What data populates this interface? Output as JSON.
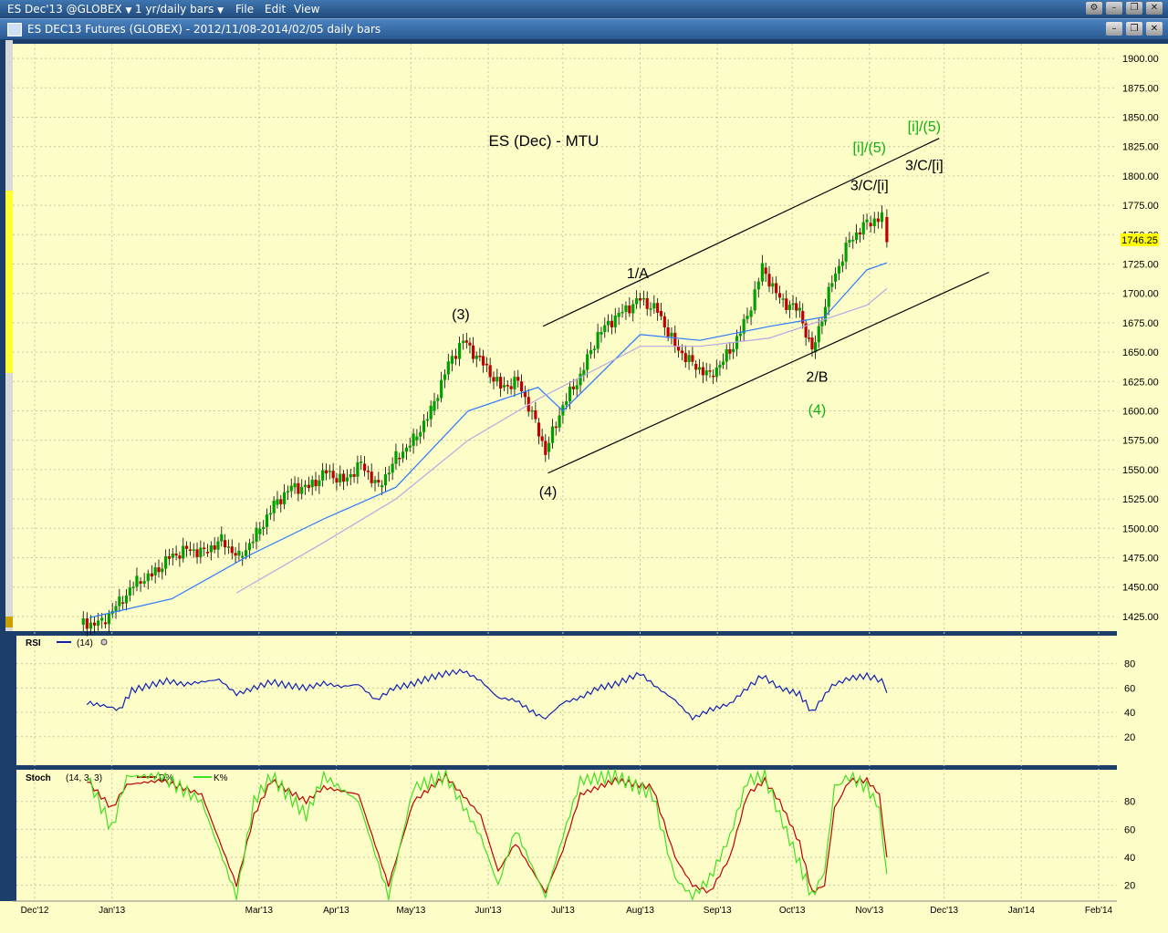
{
  "menu": {
    "symbol_label": "ES Dec'13 @GLOBEX",
    "interval_label": "1 yr/daily bars",
    "file_label": "File",
    "edit_label": "Edit",
    "view_label": "View"
  },
  "window": {
    "title": "ES DEC13 Futures (GLOBEX) - 2012/11/08-2014/02/05 daily bars"
  },
  "colors": {
    "panel_bg": "#fdfdc8",
    "grid": "#c8c8a0",
    "up_candle": "#00a000",
    "down_candle": "#c00000",
    "ma_fast": "#2878ff",
    "ma_slow": "#b7a7e6",
    "rsi_line": "#1020b0",
    "stoch_d": "#c00000",
    "stoch_k": "#40e020",
    "wave_green": "#10b010",
    "wave_black": "#000000",
    "last_price_bg": "#ffff00"
  },
  "chart_data": [
    {
      "type": "candlestick",
      "title": "ES (Dec) - MTU",
      "ylim": [
        1412.5,
        1912.5
      ],
      "yticks": [
        "1900.00",
        "1875.00",
        "1850.00",
        "1825.00",
        "1800.00",
        "1775.00",
        "1750.00",
        "1725.00",
        "1700.00",
        "1675.00",
        "1650.00",
        "1625.00",
        "1600.00",
        "1575.00",
        "1550.00",
        "1525.00",
        "1500.00",
        "1475.00",
        "1450.00",
        "1425.00"
      ],
      "last_price": "1746.25",
      "x_months": [
        "Dec '12",
        "Jan '13",
        "Mar '13",
        "Apr '13",
        "May '13",
        "Jun '13",
        "Jul '13",
        "Aug '13",
        "Sep '13",
        "Oct '13",
        "Nov '13",
        "Dec '13",
        "Jan '14",
        "Feb '14"
      ],
      "x_month_positions": [
        "2012-12-01",
        "2013-01-01",
        "2013-03-01",
        "2013-04-01",
        "2013-05-01",
        "2013-06-01",
        "2013-07-01",
        "2013-08-01",
        "2013-09-01",
        "2013-10-01",
        "2013-11-01",
        "2013-12-01",
        "2014-01-01",
        "2014-02-01"
      ],
      "x_range": [
        "2012-11-08",
        "2014-02-05"
      ],
      "closes": [
        [
          "2012-12-19",
          1418
        ],
        [
          "2012-12-28",
          1420
        ],
        [
          "2013-01-04",
          1437
        ],
        [
          "2013-01-11",
          1455
        ],
        [
          "2013-01-17",
          1460
        ],
        [
          "2013-01-24",
          1475
        ],
        [
          "2013-01-31",
          1482
        ],
        [
          "2013-02-07",
          1480
        ],
        [
          "2013-02-14",
          1490
        ],
        [
          "2013-02-21",
          1475
        ],
        [
          "2013-02-28",
          1495
        ],
        [
          "2013-03-07",
          1520
        ],
        [
          "2013-03-14",
          1535
        ],
        [
          "2013-03-21",
          1535
        ],
        [
          "2013-03-28",
          1548
        ],
        [
          "2013-04-04",
          1540
        ],
        [
          "2013-04-11",
          1555
        ],
        [
          "2013-04-18",
          1535
        ],
        [
          "2013-04-25",
          1560
        ],
        [
          "2013-05-02",
          1575
        ],
        [
          "2013-05-09",
          1600
        ],
        [
          "2013-05-16",
          1640
        ],
        [
          "2013-05-22",
          1660
        ],
        [
          "2013-05-30",
          1640
        ],
        [
          "2013-06-06",
          1620
        ],
        [
          "2013-06-13",
          1625
        ],
        [
          "2013-06-20",
          1590
        ],
        [
          "2013-06-24",
          1565
        ],
        [
          "2013-07-01",
          1605
        ],
        [
          "2013-07-08",
          1630
        ],
        [
          "2013-07-15",
          1665
        ],
        [
          "2013-07-22",
          1680
        ],
        [
          "2013-08-01",
          1695
        ],
        [
          "2013-08-08",
          1685
        ],
        [
          "2013-08-15",
          1655
        ],
        [
          "2013-08-22",
          1640
        ],
        [
          "2013-08-29",
          1630
        ],
        [
          "2013-09-06",
          1650
        ],
        [
          "2013-09-13",
          1680
        ],
        [
          "2013-09-19",
          1722
        ],
        [
          "2013-09-26",
          1695
        ],
        [
          "2013-10-04",
          1685
        ],
        [
          "2013-10-09",
          1650
        ],
        [
          "2013-10-17",
          1710
        ],
        [
          "2013-10-24",
          1745
        ],
        [
          "2013-10-31",
          1760
        ],
        [
          "2013-11-06",
          1765
        ],
        [
          "2013-11-08",
          1746.25
        ]
      ],
      "ma_fast": [
        [
          "2012-12-23",
          1424
        ],
        [
          "2013-01-25",
          1440
        ],
        [
          "2013-02-26",
          1478
        ],
        [
          "2013-03-27",
          1508
        ],
        [
          "2013-04-25",
          1535
        ],
        [
          "2013-05-24",
          1600
        ],
        [
          "2013-06-21",
          1620
        ],
        [
          "2013-07-01",
          1600
        ],
        [
          "2013-08-01",
          1665
        ],
        [
          "2013-08-25",
          1660
        ],
        [
          "2013-09-22",
          1672
        ],
        [
          "2013-10-14",
          1680
        ],
        [
          "2013-10-31",
          1720
        ],
        [
          "2013-11-08",
          1726
        ]
      ],
      "ma_slow": [
        [
          "2013-02-20",
          1445
        ],
        [
          "2013-03-27",
          1488
        ],
        [
          "2013-04-25",
          1525
        ],
        [
          "2013-05-24",
          1575
        ],
        [
          "2013-06-21",
          1610
        ],
        [
          "2013-08-01",
          1655
        ],
        [
          "2013-08-25",
          1655
        ],
        [
          "2013-09-22",
          1662
        ],
        [
          "2013-10-31",
          1690
        ],
        [
          "2013-11-08",
          1704
        ]
      ],
      "channel_lines": [
        {
          "from": [
            "2013-06-23",
            1672
          ],
          "to": [
            "2013-11-29",
            1832
          ]
        },
        {
          "from": [
            "2013-06-25",
            1547
          ],
          "to": [
            "2013-12-19",
            1718
          ]
        }
      ],
      "wave_labels": [
        {
          "text": "(3)",
          "date": "2013-05-21",
          "price": 1678,
          "color": "black"
        },
        {
          "text": "(4)",
          "date": "2013-06-25",
          "price": 1527,
          "color": "black"
        },
        {
          "text": "1/A",
          "date": "2013-07-31",
          "price": 1713,
          "color": "black"
        },
        {
          "text": "2/B",
          "date": "2013-10-11",
          "price": 1625,
          "color": "black"
        },
        {
          "text": "(4)",
          "date": "2013-10-11",
          "price": 1597,
          "color": "green"
        },
        {
          "text": "[i]/(5)",
          "date": "2013-11-01",
          "price": 1820,
          "color": "green"
        },
        {
          "text": "3/C/[i]",
          "date": "2013-11-01",
          "price": 1788,
          "color": "black"
        },
        {
          "text": "[i]/(5)",
          "date": "2013-11-23",
          "price": 1838,
          "color": "green"
        },
        {
          "text": "3/C/[i]",
          "date": "2013-11-23",
          "price": 1805,
          "color": "black"
        }
      ]
    },
    {
      "type": "line",
      "title": "RSI",
      "legend": "(14)",
      "ylim": [
        0,
        100
      ],
      "yticks": [
        "80",
        "60",
        "40",
        "20"
      ],
      "series": [
        {
          "name": "RSI",
          "values": [
            [
              "2012-12-22",
              48
            ],
            [
              "2012-12-30",
              45
            ],
            [
              "2013-01-04",
              42
            ],
            [
              "2013-01-09",
              58
            ],
            [
              "2013-01-16",
              62
            ],
            [
              "2013-01-23",
              66
            ],
            [
              "2013-01-30",
              63
            ],
            [
              "2013-02-06",
              65
            ],
            [
              "2013-02-13",
              67
            ],
            [
              "2013-02-20",
              55
            ],
            [
              "2013-02-27",
              60
            ],
            [
              "2013-03-06",
              65
            ],
            [
              "2013-03-13",
              62
            ],
            [
              "2013-03-20",
              60
            ],
            [
              "2013-03-27",
              64
            ],
            [
              "2013-04-03",
              61
            ],
            [
              "2013-04-10",
              63
            ],
            [
              "2013-04-17",
              50
            ],
            [
              "2013-04-24",
              60
            ],
            [
              "2013-05-01",
              63
            ],
            [
              "2013-05-08",
              68
            ],
            [
              "2013-05-15",
              72
            ],
            [
              "2013-05-22",
              74
            ],
            [
              "2013-05-29",
              66
            ],
            [
              "2013-06-05",
              52
            ],
            [
              "2013-06-12",
              50
            ],
            [
              "2013-06-19",
              40
            ],
            [
              "2013-06-24",
              35
            ],
            [
              "2013-07-01",
              48
            ],
            [
              "2013-07-08",
              52
            ],
            [
              "2013-07-15",
              60
            ],
            [
              "2013-07-22",
              63
            ],
            [
              "2013-08-01",
              72
            ],
            [
              "2013-08-08",
              60
            ],
            [
              "2013-08-15",
              50
            ],
            [
              "2013-08-22",
              35
            ],
            [
              "2013-08-29",
              42
            ],
            [
              "2013-09-06",
              47
            ],
            [
              "2013-09-13",
              60
            ],
            [
              "2013-09-19",
              70
            ],
            [
              "2013-09-26",
              60
            ],
            [
              "2013-10-04",
              55
            ],
            [
              "2013-10-09",
              40
            ],
            [
              "2013-10-17",
              62
            ],
            [
              "2013-10-24",
              68
            ],
            [
              "2013-10-31",
              70
            ],
            [
              "2013-11-06",
              66
            ],
            [
              "2013-11-08",
              56
            ]
          ]
        }
      ]
    },
    {
      "type": "line",
      "title": "Stoch",
      "legend": "(14, 3, 3)",
      "ylim": [
        10,
        100
      ],
      "yticks": [
        "80",
        "60",
        "40",
        "20"
      ],
      "series": [
        {
          "name": "D%",
          "values": [
            [
              "2012-12-22",
              95
            ],
            [
              "2013-01-01",
              75
            ],
            [
              "2013-01-07",
              92
            ],
            [
              "2013-01-21",
              95
            ],
            [
              "2013-02-06",
              85
            ],
            [
              "2013-02-20",
              20
            ],
            [
              "2013-02-27",
              70
            ],
            [
              "2013-03-06",
              95
            ],
            [
              "2013-03-20",
              80
            ],
            [
              "2013-03-27",
              90
            ],
            [
              "2013-04-10",
              85
            ],
            [
              "2013-04-22",
              20
            ],
            [
              "2013-05-02",
              80
            ],
            [
              "2013-05-15",
              98
            ],
            [
              "2013-05-29",
              70
            ],
            [
              "2013-06-05",
              30
            ],
            [
              "2013-06-12",
              50
            ],
            [
              "2013-06-24",
              15
            ],
            [
              "2013-07-01",
              45
            ],
            [
              "2013-07-08",
              85
            ],
            [
              "2013-07-22",
              95
            ],
            [
              "2013-08-06",
              90
            ],
            [
              "2013-08-15",
              40
            ],
            [
              "2013-08-22",
              20
            ],
            [
              "2013-08-29",
              15
            ],
            [
              "2013-09-06",
              40
            ],
            [
              "2013-09-13",
              85
            ],
            [
              "2013-09-20",
              95
            ],
            [
              "2013-09-26",
              80
            ],
            [
              "2013-10-04",
              50
            ],
            [
              "2013-10-09",
              15
            ],
            [
              "2013-10-14",
              20
            ],
            [
              "2013-10-18",
              75
            ],
            [
              "2013-10-24",
              95
            ],
            [
              "2013-10-31",
              95
            ],
            [
              "2013-11-05",
              85
            ],
            [
              "2013-11-08",
              40
            ]
          ]
        },
        {
          "name": "K%",
          "values": [
            [
              "2012-12-22",
              98
            ],
            [
              "2013-01-01",
              60
            ],
            [
              "2013-01-07",
              98
            ],
            [
              "2013-01-21",
              98
            ],
            [
              "2013-02-06",
              80
            ],
            [
              "2013-02-20",
              12
            ],
            [
              "2013-02-27",
              80
            ],
            [
              "2013-03-06",
              98
            ],
            [
              "2013-03-20",
              70
            ],
            [
              "2013-03-27",
              98
            ],
            [
              "2013-04-10",
              80
            ],
            [
              "2013-04-22",
              12
            ],
            [
              "2013-05-02",
              90
            ],
            [
              "2013-05-15",
              98
            ],
            [
              "2013-05-29",
              55
            ],
            [
              "2013-06-05",
              20
            ],
            [
              "2013-06-12",
              60
            ],
            [
              "2013-06-24",
              12
            ],
            [
              "2013-07-01",
              55
            ],
            [
              "2013-07-08",
              95
            ],
            [
              "2013-07-22",
              98
            ],
            [
              "2013-08-06",
              85
            ],
            [
              "2013-08-15",
              25
            ],
            [
              "2013-08-22",
              12
            ],
            [
              "2013-08-29",
              25
            ],
            [
              "2013-09-06",
              55
            ],
            [
              "2013-09-13",
              95
            ],
            [
              "2013-09-20",
              98
            ],
            [
              "2013-09-26",
              70
            ],
            [
              "2013-10-04",
              35
            ],
            [
              "2013-10-09",
              12
            ],
            [
              "2013-10-14",
              30
            ],
            [
              "2013-10-18",
              90
            ],
            [
              "2013-10-24",
              98
            ],
            [
              "2013-10-31",
              90
            ],
            [
              "2013-11-05",
              75
            ],
            [
              "2013-11-08",
              28
            ]
          ]
        }
      ]
    }
  ]
}
